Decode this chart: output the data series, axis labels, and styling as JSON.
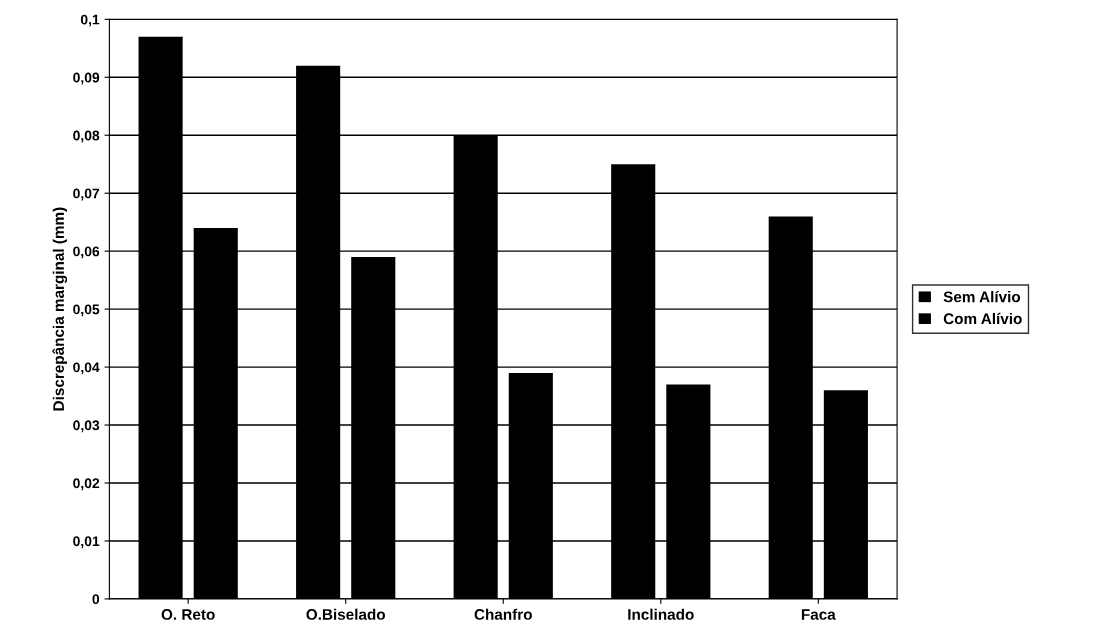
{
  "chart_data": {
    "type": "bar",
    "ylabel": "Discrepância marginal (mm)",
    "categories": [
      "O. Reto",
      "O.Biselado",
      "Chanfro",
      "Inclinado",
      "Faca"
    ],
    "series": [
      {
        "name": "Sem Alívio",
        "color": "#000000",
        "values": [
          0.097,
          0.092,
          0.08,
          0.075,
          0.066
        ]
      },
      {
        "name": "Com Alívio",
        "color": "#000000",
        "values": [
          0.064,
          0.059,
          0.039,
          0.037,
          0.036
        ]
      }
    ],
    "ylim": [
      0,
      0.1
    ],
    "yticks": [
      {
        "value": 0,
        "label": "0"
      },
      {
        "value": 0.01,
        "label": "0,01"
      },
      {
        "value": 0.02,
        "label": "0,02"
      },
      {
        "value": 0.03,
        "label": "0,03"
      },
      {
        "value": 0.04,
        "label": "0,04"
      },
      {
        "value": 0.05,
        "label": "0,05"
      },
      {
        "value": 0.06,
        "label": "0,06"
      },
      {
        "value": 0.07,
        "label": "0,07"
      },
      {
        "value": 0.08,
        "label": "0,08"
      },
      {
        "value": 0.09,
        "label": "0,09"
      },
      {
        "value": 0.1,
        "label": "0,1"
      }
    ],
    "grid": "y",
    "legend": "right"
  }
}
